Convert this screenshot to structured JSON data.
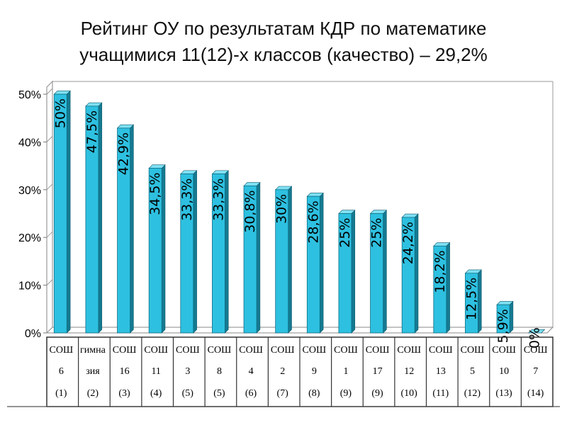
{
  "chart_data": {
    "type": "bar",
    "title_line1": "Рейтинг ОУ по результатам КДР по математике",
    "title_line2": "учащимися 11(12)-х классов (качество) – 29,2%",
    "yticks": [
      "0%",
      "10%",
      "20%",
      "30%",
      "40%",
      "50%"
    ],
    "ylim": [
      0,
      50
    ],
    "grid": false,
    "bar_color": "#2ec0e0",
    "categories": [
      {
        "school": "СОШ",
        "num": "6",
        "rank": "(1)"
      },
      {
        "school": "гимна",
        "num": "зия",
        "rank": "(2)"
      },
      {
        "school": "СОШ",
        "num": "16",
        "rank": "(3)"
      },
      {
        "school": "СОШ",
        "num": "11",
        "rank": "(4)"
      },
      {
        "school": "СОШ",
        "num": "3",
        "rank": "(5)"
      },
      {
        "school": "СОШ",
        "num": "8",
        "rank": "(5)"
      },
      {
        "school": "СОШ",
        "num": "4",
        "rank": "(6)"
      },
      {
        "school": "СОШ",
        "num": "2",
        "rank": "(7)"
      },
      {
        "school": "СОШ",
        "num": "9",
        "rank": "(8)"
      },
      {
        "school": "СОШ",
        "num": "1",
        "rank": "(9)"
      },
      {
        "school": "СОШ",
        "num": "17",
        "rank": "(9)"
      },
      {
        "school": "СОШ",
        "num": "12",
        "rank": "(10)"
      },
      {
        "school": "СОШ",
        "num": "13",
        "rank": "(11)"
      },
      {
        "school": "СОШ",
        "num": "5",
        "rank": "(12)"
      },
      {
        "school": "СОШ",
        "num": "10",
        "rank": "(13)"
      },
      {
        "school": "СОШ",
        "num": "7",
        "rank": "(14)"
      }
    ],
    "values": [
      50,
      47.5,
      42.9,
      34.5,
      33.3,
      33.3,
      30.8,
      30,
      28.6,
      25,
      25,
      24.2,
      18.2,
      12.5,
      5.9,
      0
    ],
    "labels": [
      "50%",
      "47,5%",
      "42,9%",
      "34,5%",
      "33,3%",
      "33,3%",
      "30,8%",
      "30%",
      "28,6%",
      "25%",
      "25%",
      "24,2%",
      "18,2%",
      "12,5%",
      "5,9%",
      "0%"
    ]
  }
}
